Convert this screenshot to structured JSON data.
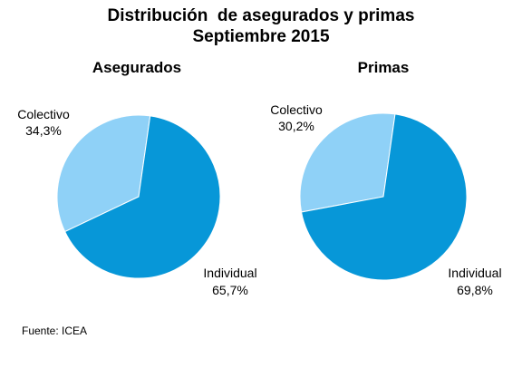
{
  "title": {
    "line1": "Distribución  de asegurados y primas",
    "line2": "Septiembre 2015"
  },
  "colors": {
    "individual": "#0797d8",
    "colectivo": "#8fd1f7"
  },
  "chart_data": [
    {
      "type": "pie",
      "title": "Asegurados",
      "slices": [
        {
          "label": "Colectivo",
          "value": 34.3,
          "display": "34,3%"
        },
        {
          "label": "Individual",
          "value": 65.7,
          "display": "65,7%"
        }
      ]
    },
    {
      "type": "pie",
      "title": "Primas",
      "slices": [
        {
          "label": "Colectivo",
          "value": 30.2,
          "display": "30,2%"
        },
        {
          "label": "Individual",
          "value": 69.8,
          "display": "69,8%"
        }
      ]
    }
  ],
  "source": "Fuente: ICEA"
}
